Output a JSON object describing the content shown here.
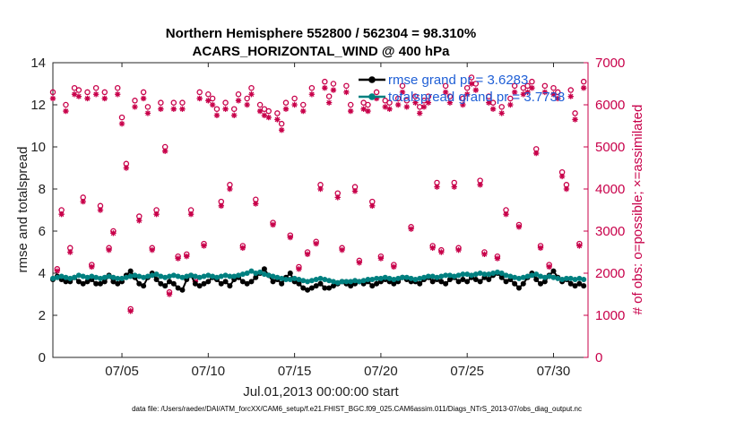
{
  "chart_data": {
    "type": "line",
    "title": "Northern Hemisphere 552800 / 562304 = 98.310%",
    "subtitle": "ACARS_HORIZONTAL_WIND @ 400 hPa",
    "xlabel": "Jul.01,2013 00:00:00 start",
    "ylabel": "rmse and totalspread",
    "y2label": "# of obs: o=possible; ×=assimilated",
    "xlim": [
      1,
      32
    ],
    "ylim": [
      0,
      14
    ],
    "y2lim": [
      0,
      7000
    ],
    "x_ticks": [
      5,
      10,
      15,
      20,
      25,
      30
    ],
    "x_tick_labels": [
      "07/05",
      "07/10",
      "07/15",
      "07/20",
      "07/25",
      "07/30"
    ],
    "y_ticks": [
      0,
      2,
      4,
      6,
      8,
      10,
      12,
      14
    ],
    "y2_ticks": [
      0,
      1000,
      2000,
      3000,
      4000,
      5000,
      6000,
      7000
    ],
    "grid": false,
    "legend_position": "top-right",
    "colors": {
      "rmse": "#000000",
      "spread": "#008080",
      "obs": "#c8004a",
      "legend_text": "#1f5fd6"
    },
    "series": [
      {
        "name": "rmse grand pr = 3.6283",
        "axis": "left",
        "x": [
          1.0,
          1.25,
          1.5,
          1.75,
          2.0,
          2.25,
          2.5,
          2.75,
          3.0,
          3.25,
          3.5,
          3.75,
          4.0,
          4.25,
          4.5,
          4.75,
          5.0,
          5.25,
          5.5,
          5.75,
          6.0,
          6.25,
          6.5,
          6.75,
          7.0,
          7.25,
          7.5,
          7.75,
          8.0,
          8.25,
          8.5,
          8.75,
          9.0,
          9.25,
          9.5,
          9.75,
          10.0,
          10.25,
          10.5,
          10.75,
          11.0,
          11.25,
          11.5,
          11.75,
          12.0,
          12.25,
          12.5,
          12.75,
          13.0,
          13.25,
          13.5,
          13.75,
          14.0,
          14.25,
          14.5,
          14.75,
          15.0,
          15.25,
          15.5,
          15.75,
          16.0,
          16.25,
          16.5,
          16.75,
          17.0,
          17.25,
          17.5,
          17.75,
          18.0,
          18.25,
          18.5,
          18.75,
          19.0,
          19.25,
          19.5,
          19.75,
          20.0,
          20.25,
          20.5,
          20.75,
          21.0,
          21.25,
          21.5,
          21.75,
          22.0,
          22.25,
          22.5,
          22.75,
          23.0,
          23.25,
          23.5,
          23.75,
          24.0,
          24.25,
          24.5,
          24.75,
          25.0,
          25.25,
          25.5,
          25.75,
          26.0,
          26.25,
          26.5,
          26.75,
          27.0,
          27.25,
          27.5,
          27.75,
          28.0,
          28.25,
          28.5,
          28.75,
          29.0,
          29.25,
          29.5,
          29.75,
          30.0,
          30.25,
          30.5,
          30.75,
          31.0,
          31.25,
          31.5,
          31.75
        ],
        "values": [
          3.7,
          3.85,
          3.7,
          3.6,
          3.6,
          3.8,
          3.6,
          3.5,
          3.6,
          3.7,
          3.5,
          3.5,
          3.6,
          3.9,
          3.6,
          3.5,
          3.6,
          3.9,
          4.1,
          3.8,
          3.5,
          3.4,
          3.8,
          4.0,
          3.7,
          3.5,
          3.4,
          3.6,
          3.5,
          3.3,
          3.2,
          3.7,
          3.9,
          3.5,
          3.4,
          3.5,
          3.6,
          3.8,
          3.7,
          3.5,
          3.6,
          3.4,
          3.7,
          3.8,
          3.6,
          3.5,
          3.6,
          3.8,
          4.0,
          4.2,
          3.9,
          3.6,
          3.7,
          3.5,
          3.8,
          4.0,
          3.6,
          3.5,
          3.3,
          3.2,
          3.3,
          3.4,
          3.5,
          3.3,
          3.3,
          3.4,
          3.5,
          3.6,
          3.5,
          3.4,
          3.5,
          3.6,
          3.5,
          3.6,
          3.4,
          3.5,
          3.6,
          3.7,
          3.6,
          3.5,
          3.6,
          3.8,
          3.7,
          3.6,
          3.6,
          3.5,
          3.7,
          3.8,
          3.6,
          3.7,
          3.6,
          3.5,
          3.7,
          3.8,
          3.6,
          3.7,
          3.6,
          3.8,
          3.7,
          3.6,
          3.8,
          3.7,
          3.9,
          4.0,
          3.8,
          3.6,
          3.7,
          3.5,
          3.3,
          3.5,
          3.8,
          4.0,
          3.7,
          3.5,
          3.6,
          3.9,
          4.1,
          3.8,
          3.6,
          3.7,
          3.5,
          3.4,
          3.5,
          3.4
        ]
      },
      {
        "name": "totalspread grand pr = 3.7738",
        "axis": "left",
        "x": [
          1.0,
          1.25,
          1.5,
          1.75,
          2.0,
          2.25,
          2.5,
          2.75,
          3.0,
          3.25,
          3.5,
          3.75,
          4.0,
          4.25,
          4.5,
          4.75,
          5.0,
          5.25,
          5.5,
          5.75,
          6.0,
          6.25,
          6.5,
          6.75,
          7.0,
          7.25,
          7.5,
          7.75,
          8.0,
          8.25,
          8.5,
          8.75,
          9.0,
          9.25,
          9.5,
          9.75,
          10.0,
          10.25,
          10.5,
          10.75,
          11.0,
          11.25,
          11.5,
          11.75,
          12.0,
          12.25,
          12.5,
          12.75,
          13.0,
          13.25,
          13.5,
          13.75,
          14.0,
          14.25,
          14.5,
          14.75,
          15.0,
          15.25,
          15.5,
          15.75,
          16.0,
          16.25,
          16.5,
          16.75,
          17.0,
          17.25,
          17.5,
          17.75,
          18.0,
          18.25,
          18.5,
          18.75,
          19.0,
          19.25,
          19.5,
          19.75,
          20.0,
          20.25,
          20.5,
          20.75,
          21.0,
          21.25,
          21.5,
          21.75,
          22.0,
          22.25,
          22.5,
          22.75,
          23.0,
          23.25,
          23.5,
          23.75,
          24.0,
          24.25,
          24.5,
          24.75,
          25.0,
          25.25,
          25.5,
          25.75,
          26.0,
          26.25,
          26.5,
          26.75,
          27.0,
          27.25,
          27.5,
          27.75,
          28.0,
          28.25,
          28.5,
          28.75,
          29.0,
          29.25,
          29.5,
          29.75,
          30.0,
          30.25,
          30.5,
          30.75,
          31.0,
          31.25,
          31.5,
          31.75
        ],
        "values": [
          3.75,
          3.8,
          3.85,
          3.8,
          3.75,
          3.8,
          3.9,
          3.85,
          3.8,
          3.85,
          3.8,
          3.75,
          3.8,
          3.85,
          3.8,
          3.75,
          3.75,
          3.8,
          3.85,
          3.9,
          3.85,
          3.8,
          3.85,
          3.9,
          3.95,
          3.85,
          3.8,
          3.85,
          3.9,
          3.85,
          3.8,
          3.85,
          3.9,
          3.85,
          3.8,
          3.85,
          3.9,
          3.85,
          3.8,
          3.85,
          3.9,
          3.85,
          3.85,
          3.9,
          3.95,
          4.0,
          4.1,
          4.0,
          4.05,
          3.95,
          3.9,
          3.85,
          3.8,
          3.75,
          3.7,
          3.7,
          3.75,
          3.7,
          3.65,
          3.6,
          3.65,
          3.7,
          3.75,
          3.7,
          3.65,
          3.6,
          3.55,
          3.6,
          3.6,
          3.6,
          3.65,
          3.6,
          3.65,
          3.7,
          3.7,
          3.75,
          3.75,
          3.8,
          3.75,
          3.7,
          3.75,
          3.8,
          3.8,
          3.75,
          3.7,
          3.75,
          3.8,
          3.85,
          3.85,
          3.8,
          3.85,
          3.9,
          3.9,
          3.85,
          3.9,
          3.95,
          3.95,
          3.9,
          3.95,
          4.0,
          3.95,
          3.95,
          4.0,
          4.05,
          4.0,
          3.9,
          3.85,
          3.8,
          3.75,
          3.8,
          3.85,
          3.9,
          3.95,
          3.85,
          3.8,
          3.85,
          3.8,
          3.75,
          3.7,
          3.75,
          3.75,
          3.7,
          3.75,
          3.7
        ]
      },
      {
        "name": "obs possible",
        "axis": "right",
        "x": [
          1.0,
          1.25,
          1.5,
          1.75,
          2.0,
          2.25,
          2.5,
          2.75,
          3.0,
          3.25,
          3.5,
          3.75,
          4.0,
          4.25,
          4.5,
          4.75,
          5.0,
          5.25,
          5.5,
          5.75,
          6.0,
          6.25,
          6.5,
          6.75,
          7.0,
          7.25,
          7.5,
          7.75,
          8.0,
          8.25,
          8.5,
          8.75,
          9.0,
          9.25,
          9.5,
          9.75,
          10.0,
          10.25,
          10.5,
          10.75,
          11.0,
          11.25,
          11.5,
          11.75,
          12.0,
          12.25,
          12.5,
          12.75,
          13.0,
          13.25,
          13.5,
          13.75,
          14.0,
          14.25,
          14.5,
          14.75,
          15.0,
          15.25,
          15.5,
          15.75,
          16.0,
          16.25,
          16.5,
          16.75,
          17.0,
          17.25,
          17.5,
          17.75,
          18.0,
          18.25,
          18.5,
          18.75,
          19.0,
          19.25,
          19.5,
          19.75,
          20.0,
          20.25,
          20.5,
          20.75,
          21.0,
          21.25,
          21.5,
          21.75,
          22.0,
          22.25,
          22.5,
          22.75,
          23.0,
          23.25,
          23.5,
          23.75,
          24.0,
          24.25,
          24.5,
          24.75,
          25.0,
          25.25,
          25.5,
          25.75,
          26.0,
          26.25,
          26.5,
          26.75,
          27.0,
          27.25,
          27.5,
          27.75,
          28.0,
          28.25,
          28.5,
          28.75,
          29.0,
          29.25,
          29.5,
          29.75,
          30.0,
          30.25,
          30.5,
          30.75,
          31.0,
          31.25,
          31.5,
          31.75
        ],
        "values": [
          6300,
          2100,
          3500,
          6000,
          2600,
          6400,
          6350,
          3800,
          6300,
          2200,
          6400,
          3600,
          6300,
          2600,
          3000,
          6400,
          5700,
          4600,
          1150,
          6100,
          3350,
          6300,
          5950,
          2600,
          3500,
          6050,
          5000,
          1550,
          6050,
          2400,
          6050,
          2450,
          3500,
          1850,
          6300,
          2700,
          6250,
          6150,
          5900,
          3700,
          6050,
          4100,
          5900,
          6250,
          2650,
          6150,
          6400,
          3750,
          6000,
          5900,
          5850,
          3200,
          5800,
          5550,
          6050,
          2900,
          6150,
          2150,
          6000,
          2500,
          6400,
          2750,
          4100,
          6550,
          6200,
          6500,
          3900,
          2600,
          6450,
          6000,
          4050,
          2300,
          6050,
          6000,
          3700,
          6300,
          2400,
          6100,
          6050,
          2200,
          6150,
          6450,
          6100,
          3100,
          6200,
          5950,
          6100,
          6200,
          2650,
          4150,
          2550,
          6450,
          6200,
          4150,
          2600,
          6150,
          6400,
          6650,
          6500,
          4200,
          2500,
          6200,
          6050,
          2400,
          5950,
          3500,
          6150,
          6450,
          3150,
          6400,
          6450,
          6550,
          4950,
          2650,
          6450,
          2200,
          6400,
          6300,
          4400,
          4100,
          6350,
          5800,
          2700,
          6550
        ]
      },
      {
        "name": "obs assimilated",
        "axis": "right",
        "x": [
          1.0,
          1.25,
          1.5,
          1.75,
          2.0,
          2.25,
          2.5,
          2.75,
          3.0,
          3.25,
          3.5,
          3.75,
          4.0,
          4.25,
          4.5,
          4.75,
          5.0,
          5.25,
          5.5,
          5.75,
          6.0,
          6.25,
          6.5,
          6.75,
          7.0,
          7.25,
          7.5,
          7.75,
          8.0,
          8.25,
          8.5,
          8.75,
          9.0,
          9.25,
          9.5,
          9.75,
          10.0,
          10.25,
          10.5,
          10.75,
          11.0,
          11.25,
          11.5,
          11.75,
          12.0,
          12.25,
          12.5,
          12.75,
          13.0,
          13.25,
          13.5,
          13.75,
          14.0,
          14.25,
          14.5,
          14.75,
          15.0,
          15.25,
          15.5,
          15.75,
          16.0,
          16.25,
          16.5,
          16.75,
          17.0,
          17.25,
          17.5,
          17.75,
          18.0,
          18.25,
          18.5,
          18.75,
          19.0,
          19.25,
          19.5,
          19.75,
          20.0,
          20.25,
          20.5,
          20.75,
          21.0,
          21.25,
          21.5,
          21.75,
          22.0,
          22.25,
          22.5,
          22.75,
          23.0,
          23.25,
          23.5,
          23.75,
          24.0,
          24.25,
          24.5,
          24.75,
          25.0,
          25.25,
          25.5,
          25.75,
          26.0,
          26.25,
          26.5,
          26.75,
          27.0,
          27.25,
          27.5,
          27.75,
          28.0,
          28.25,
          28.5,
          28.75,
          29.0,
          29.25,
          29.5,
          29.75,
          30.0,
          30.25,
          30.5,
          30.75,
          31.0,
          31.25,
          31.5,
          31.75
        ],
        "values": [
          6150,
          2050,
          3400,
          5850,
          2500,
          6250,
          6200,
          3700,
          6150,
          2150,
          6250,
          3500,
          6150,
          2550,
          2950,
          6250,
          5550,
          4500,
          1100,
          5950,
          3250,
          6150,
          5800,
          2550,
          3400,
          5900,
          4900,
          1500,
          5900,
          2350,
          5900,
          2400,
          3400,
          1800,
          6150,
          2650,
          6100,
          6000,
          5750,
          3600,
          5900,
          4000,
          5750,
          6100,
          2600,
          6000,
          6250,
          3650,
          5850,
          5750,
          5700,
          3150,
          5650,
          5400,
          5900,
          2850,
          6000,
          2100,
          5850,
          2450,
          6250,
          2700,
          4000,
          6400,
          6050,
          6350,
          3800,
          2550,
          6300,
          5850,
          3950,
          2250,
          5900,
          5850,
          3600,
          6150,
          2350,
          5950,
          5900,
          2150,
          6000,
          6300,
          5950,
          3050,
          6050,
          5800,
          5950,
          6050,
          2600,
          4050,
          2500,
          6300,
          6050,
          4050,
          2550,
          6000,
          6250,
          6500,
          6350,
          4100,
          2450,
          6050,
          5900,
          2350,
          5800,
          3400,
          6000,
          6300,
          3100,
          6250,
          6300,
          6400,
          4850,
          2600,
          6300,
          2150,
          6250,
          6150,
          4300,
          4000,
          6200,
          5650,
          2650,
          6400
        ]
      }
    ]
  },
  "footer": {
    "data_file": "data file: /Users/raeder/DAI/ATM_forcXX/CAM6_setup/f.e21.FHIST_BGC.f09_025.CAM6assim.011/Diags_NTrS_2013-07/obs_diag_output.nc"
  }
}
